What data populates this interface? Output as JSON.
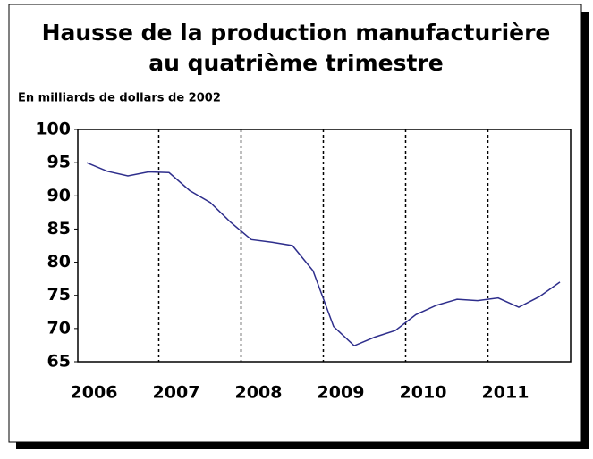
{
  "chart_data": {
    "type": "line",
    "title": [
      "Hausse de la production manufacturière",
      "au quatrième trimestre"
    ],
    "subtitle": "En milliards de dollars de 2002",
    "categories": [
      "2006",
      null,
      null,
      null,
      "2007",
      null,
      null,
      null,
      "2008",
      null,
      null,
      null,
      "2009",
      null,
      null,
      null,
      "2010",
      null,
      null,
      null,
      "2011",
      null,
      null,
      null
    ],
    "series": [
      {
        "name": "Production manufacturière",
        "color": "#2e2e8c",
        "values": [
          95.0,
          93.7,
          93.0,
          93.6,
          93.5,
          90.8,
          89.0,
          86.0,
          83.4,
          83.0,
          82.5,
          78.7,
          70.3,
          67.4,
          68.7,
          69.7,
          72.1,
          73.5,
          74.4,
          74.2,
          74.6,
          73.2,
          74.8,
          77.0
        ]
      }
    ],
    "ylim": [
      65,
      100
    ],
    "yticks": [
      65,
      70,
      75,
      80,
      85,
      90,
      95,
      100
    ],
    "year_separators": true
  }
}
